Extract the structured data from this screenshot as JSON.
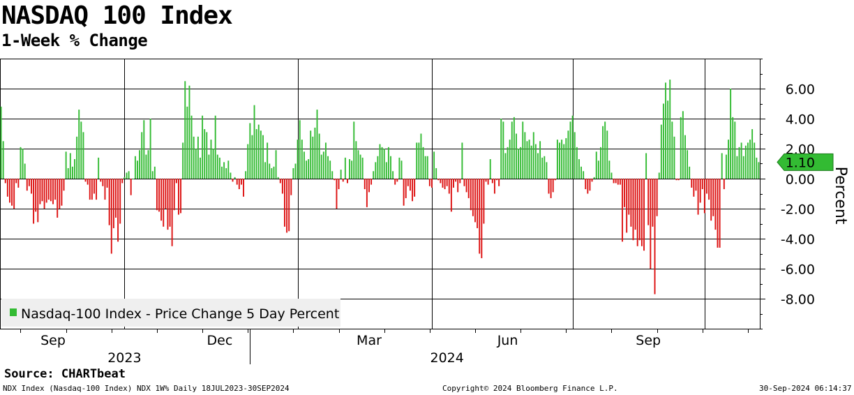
{
  "header": {
    "title": "NASDAQ 100 Index",
    "subtitle": "1-Week % Change"
  },
  "footer": {
    "source": "Source: CHARTbeat",
    "ticker_info": "NDX Index (Nasdaq-100 Index) NDX 1W%  Daily 18JUL2023-30SEP2024",
    "copyright": "Copyright© 2024 Bloomberg Finance L.P.",
    "timestamp": "30-Sep-2024 06:14:37"
  },
  "chart_data": {
    "type": "bar",
    "title": "NASDAQ 100 Index",
    "subtitle": "1-Week % Change",
    "ylabel": "Percent",
    "ylim": [
      -10,
      8
    ],
    "yticks": [
      6,
      4,
      2,
      0,
      -2,
      -4,
      -6,
      -8
    ],
    "ytick_labels": [
      "6.00",
      "4.00",
      "2.00",
      "0.00",
      "-2.00",
      "-4.00",
      "-6.00",
      "-8.00"
    ],
    "month_labels": [
      "Sep",
      "Dec",
      "Mar",
      "Jun",
      "Sep"
    ],
    "year_labels": [
      "2023",
      "2024"
    ],
    "grid": true,
    "legend": {
      "position": "bottom-left",
      "label": "Nasdaq-100 Index - Price Change 5 Day Percent"
    },
    "last_value_label": "1.10",
    "colors": {
      "positive": "#33bb33",
      "negative": "#dd1111",
      "grid": "#000000",
      "callout": "#33bb33"
    },
    "series": [
      {
        "name": "Nasdaq-100 Index - Price Change 5 Day Percent",
        "values": [
          4.8,
          2.5,
          -0.3,
          -1.2,
          -1.6,
          -1.8,
          -2.0,
          -0.3,
          -0.6,
          2.1,
          2.0,
          1.0,
          -0.8,
          -0.5,
          -1.0,
          -3.0,
          -2.2,
          -2.9,
          -1.7,
          -1.5,
          -2.0,
          -1.6,
          -1.4,
          -1.5,
          -1.7,
          -1.4,
          -2.6,
          -2.0,
          -1.8,
          -0.8,
          1.8,
          0.7,
          1.7,
          0.8,
          1.3,
          2.8,
          4.6,
          3.8,
          3.1,
          -0.2,
          -0.4,
          -1.4,
          -1.4,
          -1.0,
          -1.4,
          1.4,
          -0.2,
          -0.5,
          -1.4,
          -0.6,
          -3.1,
          -5.0,
          -3.3,
          -2.6,
          -4.2,
          -3.0,
          -0.3,
          0.1,
          0.4,
          0.5,
          -1.1,
          0.0,
          1.5,
          1.2,
          1.9,
          3.1,
          3.9,
          1.6,
          1.9,
          4.0,
          0.5,
          0.8,
          -2.1,
          -2.2,
          -2.8,
          -3.2,
          -2.0,
          -3.4,
          -3.2,
          -4.5,
          -2.1,
          -0.3,
          -2.4,
          -2.3,
          2.4,
          6.5,
          4.8,
          6.2,
          4.2,
          2.8,
          2.0,
          2.8,
          1.4,
          4.2,
          3.3,
          3.1,
          1.6,
          2.6,
          2.0,
          4.2,
          1.6,
          1.4,
          0.8,
          1.1,
          0.7,
          1.2,
          0.4,
          -0.2,
          0.1,
          -0.4,
          -0.7,
          -0.4,
          -1.2,
          0.5,
          2.3,
          3.7,
          2.9,
          4.9,
          3.3,
          3.6,
          3.2,
          2.9,
          1.1,
          2.4,
          1.0,
          0.7,
          0.8,
          1.9,
          0.1,
          -0.3,
          -1.0,
          -3.2,
          -3.6,
          -3.5,
          -1.1,
          0.7,
          1.0,
          2.6,
          3.9,
          2.6,
          1.8,
          1.2,
          1.3,
          3.2,
          2.8,
          3.4,
          4.6,
          3.0,
          1.6,
          1.8,
          2.4,
          1.5,
          1.2,
          0.5,
          -0.1,
          -2.0,
          -0.7,
          0.6,
          -0.2,
          1.4,
          -0.3,
          1.3,
          1.2,
          3.8,
          2.5,
          1.9,
          1.6,
          1.4,
          -0.7,
          -1.9,
          -0.9,
          -0.4,
          0.5,
          1.1,
          1.5,
          2.3,
          2.1,
          2.0,
          1.1,
          2.1,
          1.5,
          0.5,
          -0.4,
          -0.2,
          1.4,
          1.2,
          -1.8,
          -1.3,
          -0.5,
          -0.8,
          -1.5,
          -1.2,
          2.4,
          2.4,
          3.0,
          2.1,
          1.5,
          1.5,
          -0.5,
          -0.6,
          1.8,
          0.7,
          -0.1,
          -0.3,
          -0.6,
          -0.7,
          -0.5,
          -1.0,
          -2.2,
          -0.6,
          -0.2,
          -0.9,
          -0.3,
          2.4,
          -0.5,
          -0.9,
          -1.3,
          -2.1,
          -2.5,
          -2.9,
          -3.3,
          -5.0,
          -5.3,
          -3.0,
          -0.2,
          -0.4,
          1.3,
          -0.3,
          -1.0,
          -0.1,
          -0.5,
          4.0,
          3.8,
          1.7,
          2.1,
          2.6,
          3.8,
          4.1,
          3.0,
          2.0,
          2.1,
          3.8,
          3.1,
          2.5,
          2.6,
          2.2,
          3.1,
          2.3,
          1.7,
          2.5,
          1.4,
          1.5,
          1.1,
          -1.0,
          -1.3,
          -0.9,
          -0.1,
          2.6,
          2.4,
          2.6,
          2.3,
          2.7,
          3.2,
          3.8,
          4.2,
          3.1,
          2.1,
          1.3,
          0.8,
          0.5,
          -0.7,
          -1.0,
          -0.8,
          -0.2,
          0.1,
          1.8,
          1.2,
          2.1,
          3.5,
          3.8,
          3.2,
          1.2,
          0.4,
          -0.3,
          -0.3,
          -0.4,
          -0.4,
          -4.2,
          -1.9,
          -3.6,
          -2.4,
          -3.2,
          -4.1,
          -3.4,
          -4.5,
          -4.1,
          -4.5,
          -4.8,
          1.7,
          -3.1,
          -6.0,
          -3.2,
          -7.7,
          -2.5,
          0.4,
          3.6,
          5.0,
          6.4,
          5.2,
          6.6,
          3.8,
          2.8,
          -0.1,
          -0.1,
          4.1,
          4.5,
          2.9,
          1.9,
          0.8,
          -0.6,
          -1.2,
          -0.8,
          -2.4,
          -1.6,
          -0.7,
          -2.3,
          -1.0,
          -1.4,
          -2.8,
          -2.5,
          -3.4,
          -4.6,
          -4.6,
          1.7,
          -0.7,
          1.6,
          2.6,
          6.0,
          4.1,
          3.8,
          1.5,
          2.1,
          2.4,
          1.5,
          2.2,
          2.4,
          2.6,
          3.3,
          2.4,
          1.4,
          1.1
        ]
      }
    ]
  }
}
